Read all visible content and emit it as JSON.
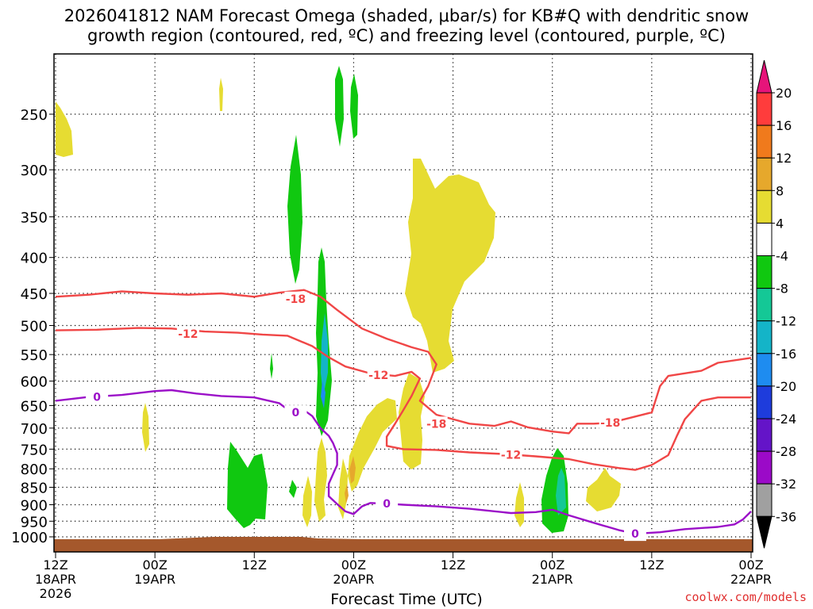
{
  "chart_data": {
    "type": "time-height",
    "title_line_1": "2026041812 NAM Forecast Omega (shaded, μbar/s) for KB#Q with dendritic snow",
    "title_line_2": "growth region (contoured, red, ºC) and freezing level (contoured, purple, ºC)",
    "xlabel": "Forecast Time (UTC)",
    "credit": "coolwx.com/models",
    "x_hours": [
      0,
      84
    ],
    "y_pressure": [
      1025,
      200
    ],
    "y_ticks": [
      250,
      300,
      350,
      400,
      450,
      500,
      550,
      600,
      650,
      700,
      750,
      800,
      850,
      900,
      950,
      1000
    ],
    "x_ticks": [
      {
        "hour": 0,
        "l1": "12Z",
        "l2": "18APR",
        "l3": "2026"
      },
      {
        "hour": 12,
        "l1": "00Z",
        "l2": "19APR",
        "l3": ""
      },
      {
        "hour": 24,
        "l1": "12Z",
        "l2": "",
        "l3": ""
      },
      {
        "hour": 36,
        "l1": "00Z",
        "l2": "20APR",
        "l3": ""
      },
      {
        "hour": 48,
        "l1": "12Z",
        "l2": "",
        "l3": ""
      },
      {
        "hour": 60,
        "l1": "00Z",
        "l2": "21APR",
        "l3": ""
      },
      {
        "hour": 72,
        "l1": "12Z",
        "l2": "",
        "l3": ""
      },
      {
        "hour": 84,
        "l1": "00Z",
        "l2": "22APR",
        "l3": ""
      }
    ],
    "colorbar": {
      "labels": [
        "20",
        "16",
        "12",
        "8",
        "4",
        "-4",
        "-8",
        "-12",
        "-16",
        "-20",
        "-24",
        "-28",
        "-32",
        "-36"
      ],
      "colors": [
        "#ff3c3c",
        "#f07a1c",
        "#e6a82c",
        "#e6dc32",
        "#ffffff",
        "#10c810",
        "#14c896",
        "#14b4c8",
        "#1e8cf0",
        "#1e3cdc",
        "#6414c8",
        "#9b0ac8",
        "#a0a0a0"
      ],
      "top_color": "#e6147a",
      "bottom_color": "#000000"
    },
    "series": [
      {
        "name": "dendritic -18C",
        "color": "#f04646",
        "label": "-18",
        "points": [
          [
            0,
            455
          ],
          [
            4,
            452
          ],
          [
            8,
            447
          ],
          [
            12,
            450
          ],
          [
            16,
            452
          ],
          [
            20,
            450
          ],
          [
            24,
            455
          ],
          [
            27,
            449
          ],
          [
            30,
            445
          ],
          [
            32,
            455
          ],
          [
            34,
            475
          ],
          [
            37,
            505
          ],
          [
            40,
            522
          ],
          [
            43,
            537
          ],
          [
            45,
            545
          ],
          [
            46,
            568
          ],
          [
            45,
            610
          ],
          [
            44,
            640
          ],
          [
            46,
            670
          ],
          [
            50,
            690
          ],
          [
            53,
            695
          ],
          [
            55,
            685
          ],
          [
            57,
            698
          ],
          [
            60,
            708
          ],
          [
            62,
            712
          ],
          [
            63,
            690
          ],
          [
            65,
            690
          ],
          [
            67,
            688
          ],
          [
            72,
            665
          ],
          [
            73,
            610
          ],
          [
            74,
            590
          ],
          [
            78,
            580
          ],
          [
            80,
            565
          ],
          [
            84,
            556
          ]
        ],
        "labels_at": [
          [
            29,
            458
          ],
          [
            46,
            690
          ],
          [
            67,
            688
          ]
        ]
      },
      {
        "name": "dendritic -12C",
        "color": "#f04646",
        "label": "-12",
        "points": [
          [
            0,
            508
          ],
          [
            5,
            507
          ],
          [
            10,
            504
          ],
          [
            14,
            505
          ],
          [
            18,
            510
          ],
          [
            22,
            512
          ],
          [
            25,
            515
          ],
          [
            28,
            517
          ],
          [
            31,
            535
          ],
          [
            33,
            555
          ],
          [
            35,
            572
          ],
          [
            38,
            585
          ],
          [
            41,
            590
          ],
          [
            43,
            582
          ],
          [
            44,
            595
          ],
          [
            43,
            630
          ],
          [
            42,
            660
          ],
          [
            41,
            690
          ],
          [
            40,
            720
          ],
          [
            40,
            742
          ],
          [
            42,
            750
          ],
          [
            46,
            752
          ],
          [
            50,
            758
          ],
          [
            54,
            762
          ],
          [
            58,
            768
          ],
          [
            62,
            775
          ],
          [
            65,
            788
          ],
          [
            68,
            798
          ],
          [
            70,
            803
          ],
          [
            72,
            790
          ],
          [
            74,
            765
          ],
          [
            75,
            720
          ],
          [
            76,
            680
          ],
          [
            78,
            640
          ],
          [
            80,
            633
          ],
          [
            84,
            633
          ]
        ],
        "labels_at": [
          [
            16,
            514
          ],
          [
            39,
            588
          ],
          [
            55,
            764
          ]
        ]
      },
      {
        "name": "freezing level 0C",
        "color": "#9b10c8",
        "label": "0",
        "points": [
          [
            0,
            640
          ],
          [
            4,
            632
          ],
          [
            8,
            628
          ],
          [
            12,
            620
          ],
          [
            14,
            618
          ],
          [
            17,
            625
          ],
          [
            20,
            630
          ],
          [
            24,
            633
          ],
          [
            27,
            645
          ],
          [
            28,
            658
          ],
          [
            29,
            665
          ],
          [
            30,
            660
          ],
          [
            31,
            673
          ],
          [
            32,
            700
          ],
          [
            33,
            718
          ],
          [
            33.5,
            735
          ],
          [
            34,
            760
          ],
          [
            34,
            790
          ],
          [
            33,
            840
          ],
          [
            33,
            875
          ],
          [
            34,
            898
          ],
          [
            35,
            920
          ],
          [
            36,
            928
          ],
          [
            37,
            905
          ],
          [
            38,
            895
          ],
          [
            40,
            897
          ],
          [
            42,
            900
          ],
          [
            46,
            905
          ],
          [
            50,
            912
          ],
          [
            55,
            925
          ],
          [
            58,
            922
          ],
          [
            60,
            915
          ],
          [
            62,
            932
          ],
          [
            65,
            955
          ],
          [
            68,
            978
          ],
          [
            70,
            990
          ],
          [
            73,
            985
          ],
          [
            76,
            975
          ],
          [
            80,
            968
          ],
          [
            82,
            960
          ],
          [
            83,
            945
          ],
          [
            84,
            920
          ]
        ],
        "labels_at": [
          [
            5,
            632
          ],
          [
            29,
            665
          ],
          [
            40,
            897
          ],
          [
            70,
            990
          ]
        ]
      }
    ]
  }
}
